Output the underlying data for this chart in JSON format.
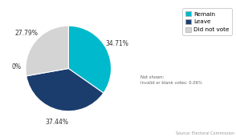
{
  "labels": [
    "Remain",
    "Leave",
    "Did not vote"
  ],
  "values": [
    34.71,
    37.44,
    27.79
  ],
  "colors": [
    "#00b9cc",
    "#1b3d6e",
    "#d4d4d4"
  ],
  "legend_labels": [
    "Remain",
    "Leave",
    "Did not vote"
  ],
  "not_shown_text": "Not shown:\nInvalid or blank votes: 0.06%",
  "source_text": "Source: Electoral Commission",
  "startangle": 90,
  "figsize": [
    2.94,
    1.71
  ],
  "dpi": 100
}
